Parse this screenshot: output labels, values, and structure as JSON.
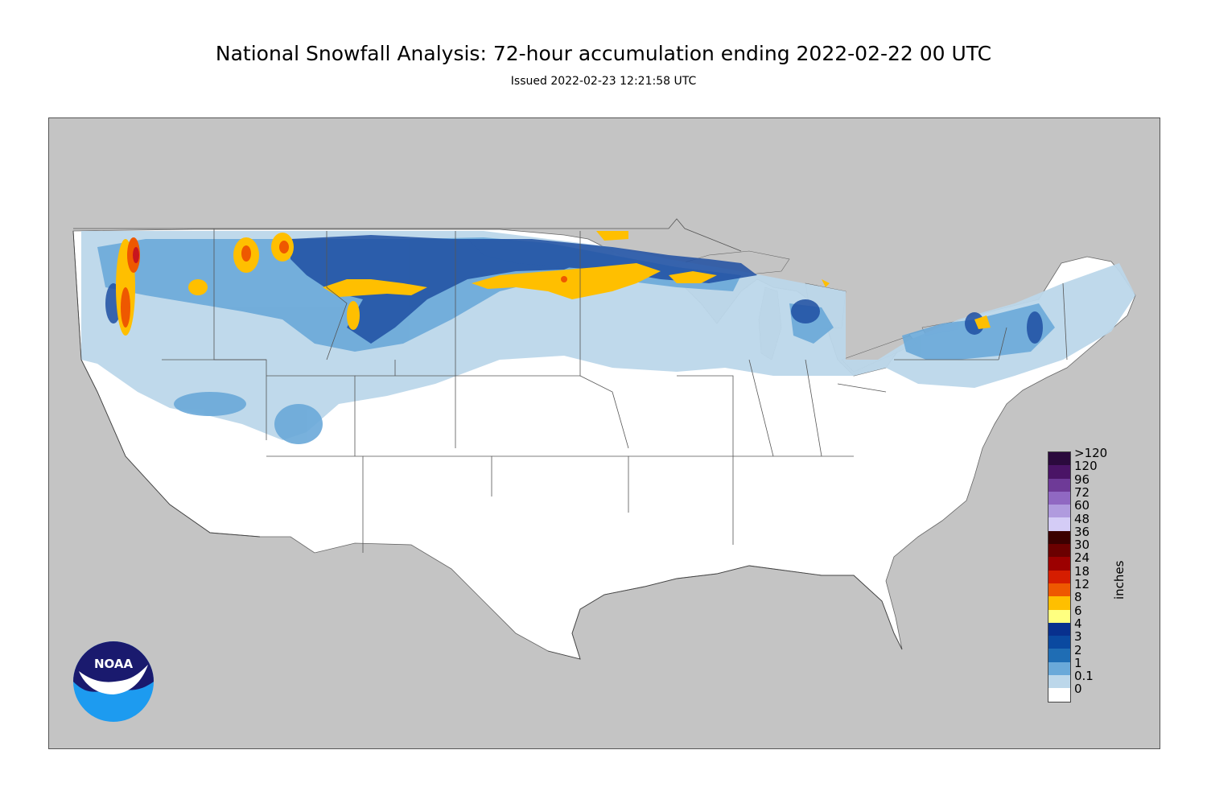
{
  "title": "National Snowfall Analysis: 72-hour accumulation ending 2022-02-22 00 UTC",
  "subtitle": "Issued 2022-02-23 12:21:58 UTC",
  "colors": {
    "background_out_of_domain": "#c4c4c4",
    "land_no_snow": "#ffffff",
    "borders": "#555555"
  },
  "legend": {
    "units": "inches",
    "bins": [
      {
        "label": ">120",
        "color": "#2b0a3d"
      },
      {
        "label": "120",
        "color": "#4a1466"
      },
      {
        "label": "96",
        "color": "#6e3a97"
      },
      {
        "label": "72",
        "color": "#9068c2"
      },
      {
        "label": "60",
        "color": "#b09bde"
      },
      {
        "label": "48",
        "color": "#d4ccf6"
      },
      {
        "label": "36",
        "color": "#3b0000"
      },
      {
        "label": "30",
        "color": "#6b0000"
      },
      {
        "label": "24",
        "color": "#9c0000"
      },
      {
        "label": "18",
        "color": "#d51d00"
      },
      {
        "label": "12",
        "color": "#ee5800"
      },
      {
        "label": "8",
        "color": "#ff8c00"
      },
      {
        "label": "6",
        "color": "#ffbf00"
      },
      {
        "label": "4",
        "color": "#ffff80"
      },
      {
        "label": "3",
        "color": "#08308e"
      },
      {
        "label": "2",
        "color": "#0a49a0"
      },
      {
        "label": "1",
        "color": "#1f6db4"
      },
      {
        "label": "0.1",
        "color": "#3b86c5"
      },
      {
        "label": "0",
        "color": "#6aa9d9"
      },
      {
        "label": "",
        "color": "#bcd7ea"
      },
      {
        "label": "",
        "color": "#e3edf6"
      },
      {
        "label": "",
        "color": "#ffffff"
      }
    ],
    "tick_labels": [
      ">120",
      "120",
      "96",
      "72",
      "60",
      "48",
      "36",
      "30",
      "24",
      "18",
      "12",
      "8",
      "6",
      "4",
      "3",
      "2",
      "1",
      "0.1",
      "0"
    ]
  },
  "logo": {
    "text": "NOAA"
  }
}
